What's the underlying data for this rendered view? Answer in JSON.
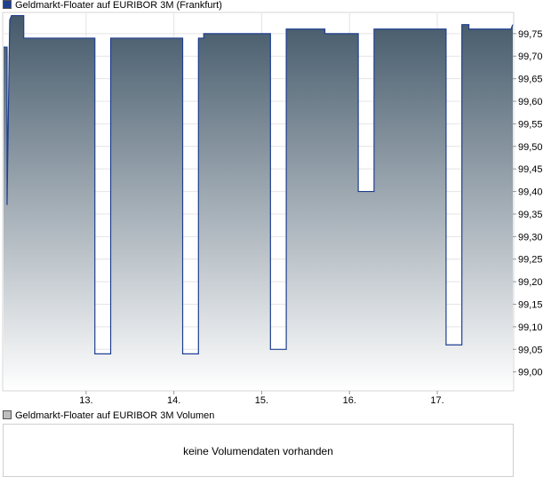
{
  "price_legend": {
    "label": "Geldmarkt-Floater auf EURIBOR 3M (Frankfurt)",
    "color": "#1f3f8f"
  },
  "volume_legend": {
    "label": "Geldmarkt-Floater auf EURIBOR 3M Volumen",
    "color": "#bdbdbd"
  },
  "volume_panel": {
    "message": "keine Volumendaten vorhanden"
  },
  "chart_data": {
    "type": "area",
    "title": "Geldmarkt-Floater auf EURIBOR 3M (Frankfurt)",
    "xlabel": "",
    "ylabel": "",
    "x_ticks": [
      "13.",
      "14.",
      "15.",
      "16.",
      "17."
    ],
    "y_ticks": [
      "99,00",
      "99,05",
      "99,10",
      "99,15",
      "99,20",
      "99,25",
      "99,30",
      "99,35",
      "99,40",
      "99,45",
      "99,50",
      "99,55",
      "99,60",
      "99,65",
      "99,70",
      "99,75"
    ],
    "ylim": [
      98.96,
      99.795
    ],
    "xlim": [
      12.06,
      17.86
    ],
    "grid": true,
    "line_color": "#1f3f8f",
    "fill_top_color": "#44596a",
    "fill_bottom_color": "#ffffff",
    "series": [
      {
        "x": [
          12.06,
          12.1,
          12.1,
          12.13,
          12.15,
          12.15,
          12.29,
          12.29,
          13.1,
          13.1,
          13.28,
          13.28,
          14.1,
          14.1,
          14.28,
          14.28,
          14.34,
          14.34,
          15.1,
          15.1,
          15.28,
          15.28,
          15.72,
          15.72,
          16.1,
          16.1,
          16.28,
          16.28,
          17.1,
          17.1,
          17.28,
          17.28,
          17.36,
          17.36,
          17.84,
          17.86
        ],
        "y": [
          99.72,
          99.72,
          99.37,
          99.78,
          99.79,
          99.79,
          99.79,
          99.74,
          99.74,
          99.04,
          99.04,
          99.74,
          99.74,
          99.04,
          99.04,
          99.74,
          99.74,
          99.75,
          99.75,
          99.05,
          99.05,
          99.76,
          99.76,
          99.75,
          99.75,
          99.4,
          99.4,
          99.76,
          99.76,
          99.06,
          99.06,
          99.77,
          99.77,
          99.76,
          99.76,
          99.77
        ]
      }
    ]
  }
}
